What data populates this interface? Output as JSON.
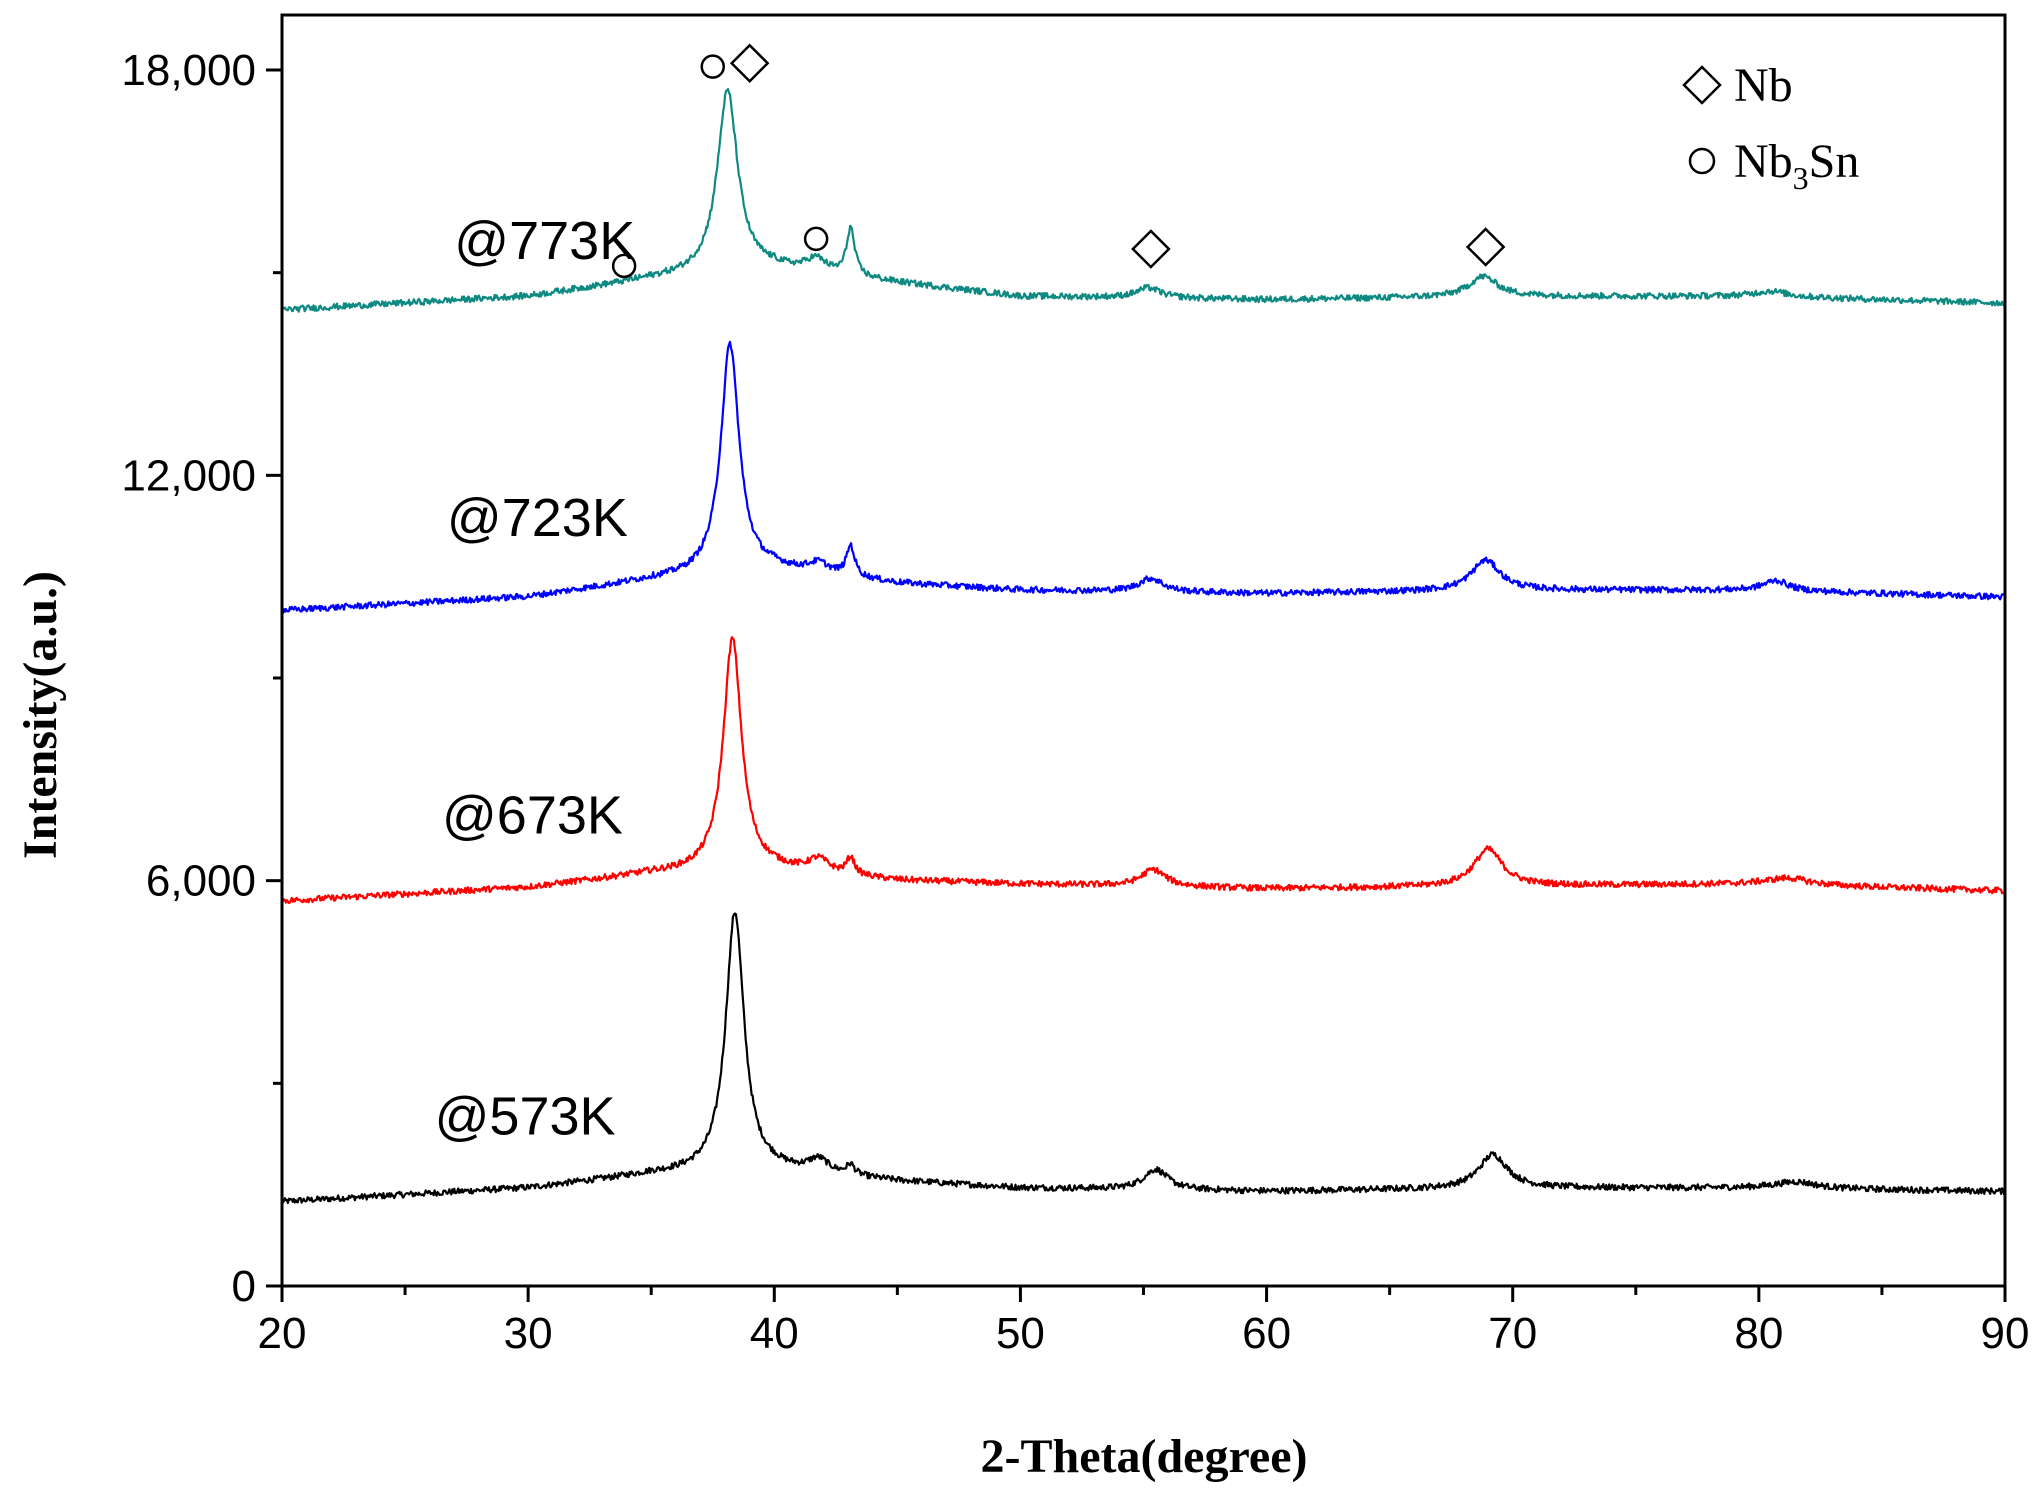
{
  "chart_data": {
    "type": "line",
    "title": "",
    "xlabel": "2-Theta(degree)",
    "ylabel": "Intensity(a.u.)",
    "xlim": [
      20,
      90
    ],
    "ylim": [
      0,
      18000
    ],
    "xticks": [
      20,
      30,
      40,
      50,
      60,
      70,
      80,
      90
    ],
    "xtick_labels": [
      "20",
      "30",
      "40",
      "50",
      "60",
      "70",
      "80",
      "90"
    ],
    "yticks": [
      0,
      6000,
      12000,
      18000
    ],
    "ytick_labels": [
      "0",
      "6,000",
      "12,000",
      "18,000"
    ],
    "series": [
      {
        "name": "@573K",
        "color": "#000000",
        "baseline": [
          [
            20,
            1250
          ],
          [
            30,
            1450
          ],
          [
            35,
            1650
          ],
          [
            40,
            1700
          ],
          [
            45,
            1550
          ],
          [
            50,
            1450
          ],
          [
            60,
            1400
          ],
          [
            70,
            1450
          ],
          [
            80,
            1450
          ],
          [
            90,
            1400
          ]
        ],
        "peaks": [
          {
            "x": 38.4,
            "height": 3850,
            "width": 0.45
          },
          {
            "x": 41.8,
            "height": 200,
            "width": 0.5
          },
          {
            "x": 43.1,
            "height": 150,
            "width": 0.2
          },
          {
            "x": 55.5,
            "height": 300,
            "width": 0.6
          },
          {
            "x": 69.2,
            "height": 500,
            "width": 0.7
          },
          {
            "x": 81.5,
            "height": 100,
            "width": 1.0
          }
        ]
      },
      {
        "name": "@673K",
        "color": "#ff0000",
        "baseline": [
          [
            20,
            5700
          ],
          [
            30,
            5900
          ],
          [
            35,
            6100
          ],
          [
            40,
            6150
          ],
          [
            45,
            6000
          ],
          [
            50,
            5950
          ],
          [
            60,
            5880
          ],
          [
            70,
            5920
          ],
          [
            80,
            5950
          ],
          [
            90,
            5850
          ]
        ],
        "peaks": [
          {
            "x": 38.3,
            "height": 3450,
            "width": 0.45
          },
          {
            "x": 41.8,
            "height": 200,
            "width": 0.5
          },
          {
            "x": 43.1,
            "height": 250,
            "width": 0.2
          },
          {
            "x": 55.4,
            "height": 250,
            "width": 0.6
          },
          {
            "x": 69.0,
            "height": 550,
            "width": 0.7
          },
          {
            "x": 81.2,
            "height": 100,
            "width": 1.0
          }
        ]
      },
      {
        "name": "@723K",
        "color": "#0000ff",
        "baseline": [
          [
            20,
            10000
          ],
          [
            30,
            10200
          ],
          [
            35,
            10450
          ],
          [
            40,
            10600
          ],
          [
            45,
            10400
          ],
          [
            50,
            10300
          ],
          [
            60,
            10250
          ],
          [
            70,
            10300
          ],
          [
            80,
            10300
          ],
          [
            90,
            10200
          ]
        ],
        "peaks": [
          {
            "x": 38.2,
            "height": 3400,
            "width": 0.45
          },
          {
            "x": 41.8,
            "height": 150,
            "width": 0.5
          },
          {
            "x": 43.1,
            "height": 450,
            "width": 0.2
          },
          {
            "x": 55.3,
            "height": 200,
            "width": 0.6
          },
          {
            "x": 68.9,
            "height": 450,
            "width": 0.7
          },
          {
            "x": 80.7,
            "height": 150,
            "width": 0.6
          }
        ]
      },
      {
        "name": "@773K",
        "color": "#0f8a82",
        "baseline": [
          [
            20,
            14450
          ],
          [
            30,
            14650
          ],
          [
            35,
            14900
          ],
          [
            40,
            15050
          ],
          [
            45,
            14850
          ],
          [
            50,
            14650
          ],
          [
            60,
            14600
          ],
          [
            70,
            14650
          ],
          [
            80,
            14650
          ],
          [
            90,
            14550
          ]
        ],
        "peaks": [
          {
            "x": 38.1,
            "height": 2700,
            "width": 0.5
          },
          {
            "x": 41.7,
            "height": 200,
            "width": 0.5
          },
          {
            "x": 43.1,
            "height": 700,
            "width": 0.2
          },
          {
            "x": 55.2,
            "height": 150,
            "width": 0.6
          },
          {
            "x": 68.8,
            "height": 300,
            "width": 0.7
          },
          {
            "x": 80.5,
            "height": 80,
            "width": 0.8
          }
        ]
      }
    ],
    "annotations": [
      {
        "label": "@773K",
        "x": 27.0,
        "y": 15200
      },
      {
        "label": "@723K",
        "x": 26.7,
        "y": 11100
      },
      {
        "label": "@673K",
        "x": 26.5,
        "y": 6700
      },
      {
        "label": "@573K",
        "x": 26.2,
        "y": 2240
      }
    ],
    "peak_markers": [
      {
        "symbol": "circle",
        "phase": "Nb3Sn",
        "x": 37.5,
        "y": 18050
      },
      {
        "symbol": "diamond",
        "phase": "Nb",
        "x": 39.0,
        "y": 18100
      },
      {
        "symbol": "circle",
        "phase": "Nb3Sn",
        "x": 33.9,
        "y": 15100
      },
      {
        "symbol": "circle",
        "phase": "Nb3Sn",
        "x": 41.7,
        "y": 15500
      },
      {
        "symbol": "diamond",
        "phase": "Nb",
        "x": 55.3,
        "y": 15350
      },
      {
        "symbol": "diamond",
        "phase": "Nb",
        "x": 68.9,
        "y": 15380
      }
    ],
    "legend": {
      "position": "top-right",
      "entries": [
        {
          "symbol": "diamond",
          "label": "Nb",
          "base": "Nb",
          "sub": "",
          "rest": ""
        },
        {
          "symbol": "circle",
          "label": "Nb3Sn",
          "base": "Nb",
          "sub": "3",
          "rest": "Sn"
        }
      ]
    }
  }
}
